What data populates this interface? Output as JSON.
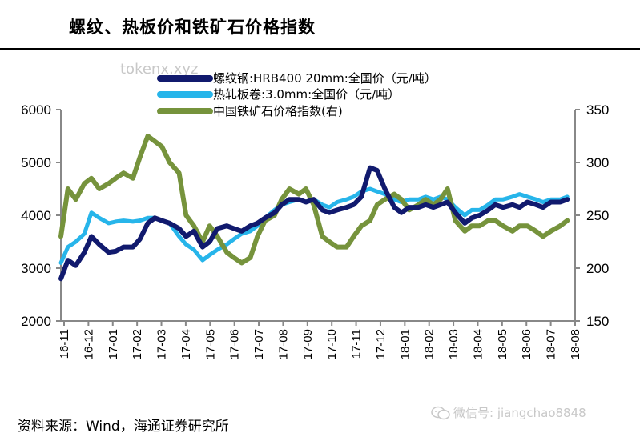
{
  "page": {
    "title": "螺纹、热板价和铁矿石价格指数",
    "source": "资料来源：Wind，海通证券研究所",
    "watermark_top": "tokenx.xyz",
    "watermark_bottom": "微信号: jiangchao8848"
  },
  "chart_data": {
    "type": "line",
    "title": "螺纹、热板价和铁矿石价格指数",
    "x_ticks": [
      "16-11",
      "16-12",
      "17-01",
      "17-02",
      "17-03",
      "17-04",
      "17-05",
      "17-06",
      "17-07",
      "17-08",
      "17-09",
      "17-10",
      "17-11",
      "17-12",
      "18-01",
      "18-02",
      "18-03",
      "18-04",
      "18-05",
      "18-06",
      "18-07",
      "18-08"
    ],
    "y_left": {
      "min": 2000,
      "max": 6000,
      "ticks": [
        "2000",
        "3000",
        "4000",
        "5000",
        "6000"
      ]
    },
    "y_right": {
      "min": 150,
      "max": 350,
      "ticks": [
        "150",
        "200",
        "250",
        "300",
        "350"
      ]
    },
    "grid": false,
    "legend_position": "top",
    "series": [
      {
        "name": "螺纹钢:HRB400 20mm:全国价（元/吨）",
        "axis": "left",
        "color": "#111a6e",
        "x": [
          "2016-11-01",
          "2016-11-10",
          "2016-11-20",
          "2016-12-01",
          "2016-12-10",
          "2016-12-20",
          "2017-01-01",
          "2017-01-10",
          "2017-01-20",
          "2017-02-01",
          "2017-02-10",
          "2017-02-20",
          "2017-03-01",
          "2017-03-10",
          "2017-03-20",
          "2017-04-01",
          "2017-04-10",
          "2017-04-20",
          "2017-05-01",
          "2017-05-10",
          "2017-05-20",
          "2017-06-01",
          "2017-06-10",
          "2017-06-20",
          "2017-07-01",
          "2017-07-10",
          "2017-07-20",
          "2017-08-01",
          "2017-08-10",
          "2017-08-20",
          "2017-09-01",
          "2017-09-10",
          "2017-09-20",
          "2017-10-01",
          "2017-10-10",
          "2017-10-20",
          "2017-11-01",
          "2017-11-10",
          "2017-11-20",
          "2017-12-01",
          "2017-12-10",
          "2017-12-20",
          "2018-01-01",
          "2018-01-10",
          "2018-01-20",
          "2018-02-01",
          "2018-02-10",
          "2018-02-20",
          "2018-03-01",
          "2018-03-10",
          "2018-03-20",
          "2018-04-01",
          "2018-04-10",
          "2018-04-20",
          "2018-05-01",
          "2018-05-10",
          "2018-05-20",
          "2018-06-01",
          "2018-06-10",
          "2018-06-20",
          "2018-07-01",
          "2018-07-10",
          "2018-07-20",
          "2018-08-01",
          "2018-08-10"
        ],
        "values": [
          2800,
          3150,
          3050,
          3300,
          3600,
          3450,
          3300,
          3320,
          3400,
          3400,
          3550,
          3850,
          3950,
          3900,
          3850,
          3750,
          3600,
          3700,
          3400,
          3500,
          3750,
          3800,
          3750,
          3700,
          3800,
          3850,
          3950,
          4050,
          4200,
          4300,
          4300,
          4250,
          4300,
          4100,
          4050,
          4100,
          4150,
          4200,
          4350,
          4900,
          4850,
          4500,
          4150,
          4050,
          4150,
          4150,
          4200,
          4150,
          4200,
          4250,
          4050,
          3850,
          3950,
          4000,
          4100,
          4200,
          4150,
          4200,
          4150,
          4250,
          4200,
          4150,
          4250,
          4250,
          4300
        ]
      },
      {
        "name": "热轧板卷:3.0mm:全国价（元/吨）",
        "axis": "left",
        "color": "#27b5ea",
        "x": [
          "2016-11-01",
          "2016-11-10",
          "2016-11-20",
          "2016-12-01",
          "2016-12-10",
          "2016-12-20",
          "2017-01-01",
          "2017-01-10",
          "2017-01-20",
          "2017-02-01",
          "2017-02-10",
          "2017-02-20",
          "2017-03-01",
          "2017-03-10",
          "2017-03-20",
          "2017-04-01",
          "2017-04-10",
          "2017-04-20",
          "2017-05-01",
          "2017-05-10",
          "2017-05-20",
          "2017-06-01",
          "2017-06-10",
          "2017-06-20",
          "2017-07-01",
          "2017-07-10",
          "2017-07-20",
          "2017-08-01",
          "2017-08-10",
          "2017-08-20",
          "2017-09-01",
          "2017-09-10",
          "2017-09-20",
          "2017-10-01",
          "2017-10-10",
          "2017-10-20",
          "2017-11-01",
          "2017-11-10",
          "2017-11-20",
          "2017-12-01",
          "2017-12-10",
          "2017-12-20",
          "2018-01-01",
          "2018-01-10",
          "2018-01-20",
          "2018-02-01",
          "2018-02-10",
          "2018-02-20",
          "2018-03-01",
          "2018-03-10",
          "2018-03-20",
          "2018-04-01",
          "2018-04-10",
          "2018-04-20",
          "2018-05-01",
          "2018-05-10",
          "2018-05-20",
          "2018-06-01",
          "2018-06-10",
          "2018-06-20",
          "2018-07-01",
          "2018-07-10",
          "2018-07-20",
          "2018-08-01",
          "2018-08-10"
        ],
        "values": [
          3100,
          3400,
          3500,
          3650,
          4050,
          3950,
          3850,
          3880,
          3900,
          3880,
          3900,
          3950,
          3950,
          3900,
          3850,
          3600,
          3450,
          3350,
          3150,
          3250,
          3350,
          3450,
          3550,
          3650,
          3700,
          3800,
          3950,
          4100,
          4200,
          4250,
          4300,
          4250,
          4300,
          4200,
          4150,
          4250,
          4300,
          4350,
          4450,
          4500,
          4450,
          4400,
          4300,
          4250,
          4300,
          4300,
          4350,
          4300,
          4350,
          4300,
          4150,
          4000,
          4100,
          4100,
          4200,
          4300,
          4300,
          4350,
          4400,
          4350,
          4300,
          4250,
          4300,
          4300,
          4350
        ]
      },
      {
        "name": "中国铁矿石价格指数(右)",
        "axis": "right",
        "color": "#76933c",
        "x": [
          "2016-11-01",
          "2016-11-10",
          "2016-11-20",
          "2016-12-01",
          "2016-12-10",
          "2016-12-20",
          "2017-01-01",
          "2017-01-10",
          "2017-01-20",
          "2017-02-01",
          "2017-02-10",
          "2017-02-20",
          "2017-03-01",
          "2017-03-10",
          "2017-03-20",
          "2017-04-01",
          "2017-04-10",
          "2017-04-20",
          "2017-05-01",
          "2017-05-10",
          "2017-05-20",
          "2017-06-01",
          "2017-06-10",
          "2017-06-20",
          "2017-07-01",
          "2017-07-10",
          "2017-07-20",
          "2017-08-01",
          "2017-08-10",
          "2017-08-20",
          "2017-09-01",
          "2017-09-10",
          "2017-09-20",
          "2017-10-01",
          "2017-10-10",
          "2017-10-20",
          "2017-11-01",
          "2017-11-10",
          "2017-11-20",
          "2017-12-01",
          "2017-12-10",
          "2017-12-20",
          "2018-01-01",
          "2018-01-10",
          "2018-01-20",
          "2018-02-01",
          "2018-02-10",
          "2018-02-20",
          "2018-03-01",
          "2018-03-10",
          "2018-03-20",
          "2018-04-01",
          "2018-04-10",
          "2018-04-20",
          "2018-05-01",
          "2018-05-10",
          "2018-05-20",
          "2018-06-01",
          "2018-06-10",
          "2018-06-20",
          "2018-07-01",
          "2018-07-10",
          "2018-07-20",
          "2018-08-01",
          "2018-08-10"
        ],
        "values": [
          230,
          275,
          265,
          280,
          285,
          275,
          280,
          285,
          290,
          285,
          305,
          325,
          320,
          315,
          300,
          290,
          250,
          240,
          225,
          240,
          230,
          215,
          210,
          205,
          210,
          230,
          245,
          250,
          265,
          275,
          270,
          275,
          260,
          230,
          225,
          220,
          220,
          230,
          240,
          245,
          260,
          265,
          270,
          265,
          255,
          260,
          265,
          260,
          265,
          275,
          245,
          235,
          240,
          240,
          245,
          245,
          240,
          235,
          240,
          240,
          235,
          230,
          235,
          240,
          245
        ]
      }
    ]
  }
}
